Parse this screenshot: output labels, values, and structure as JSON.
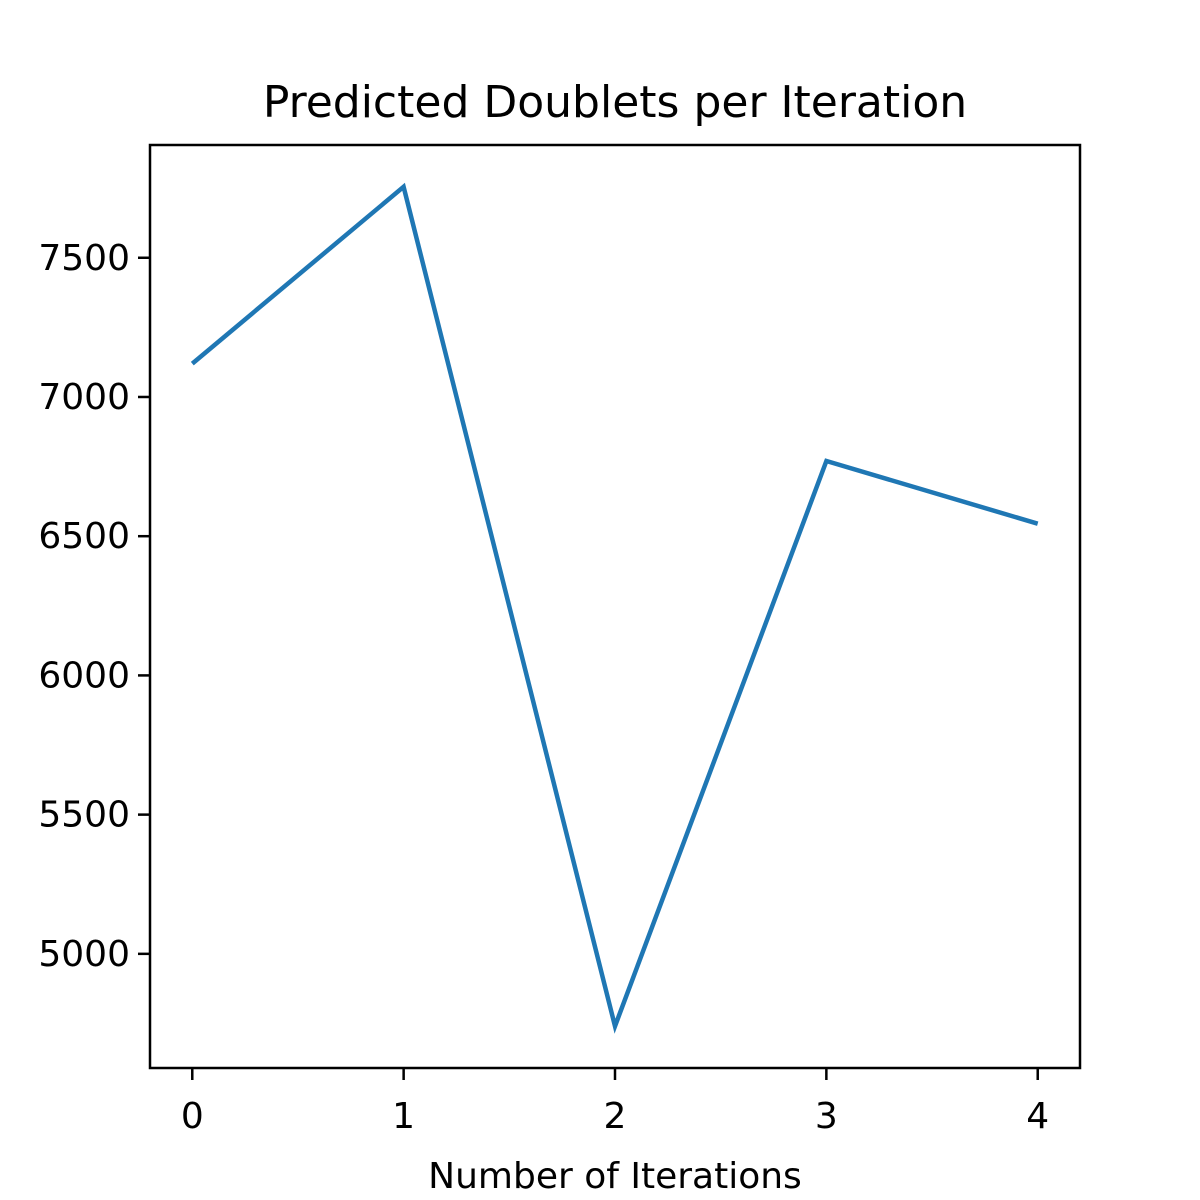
{
  "chart_data": {
    "type": "line",
    "title": "Predicted Doublets per Iteration",
    "xlabel": "Number of Iterations",
    "ylabel": "",
    "x": [
      0,
      1,
      2,
      3,
      4
    ],
    "series": [
      {
        "values": [
          7120,
          7755,
          4740,
          6770,
          6545
        ],
        "color": "#1f77b4"
      }
    ],
    "xlim": [
      -0.2,
      4.2
    ],
    "ylim": [
      4590,
      7905
    ],
    "xticks": [
      0,
      1,
      2,
      3,
      4
    ],
    "yticks": [
      5000,
      5500,
      6000,
      6500,
      7000,
      7500
    ],
    "grid": false
  }
}
